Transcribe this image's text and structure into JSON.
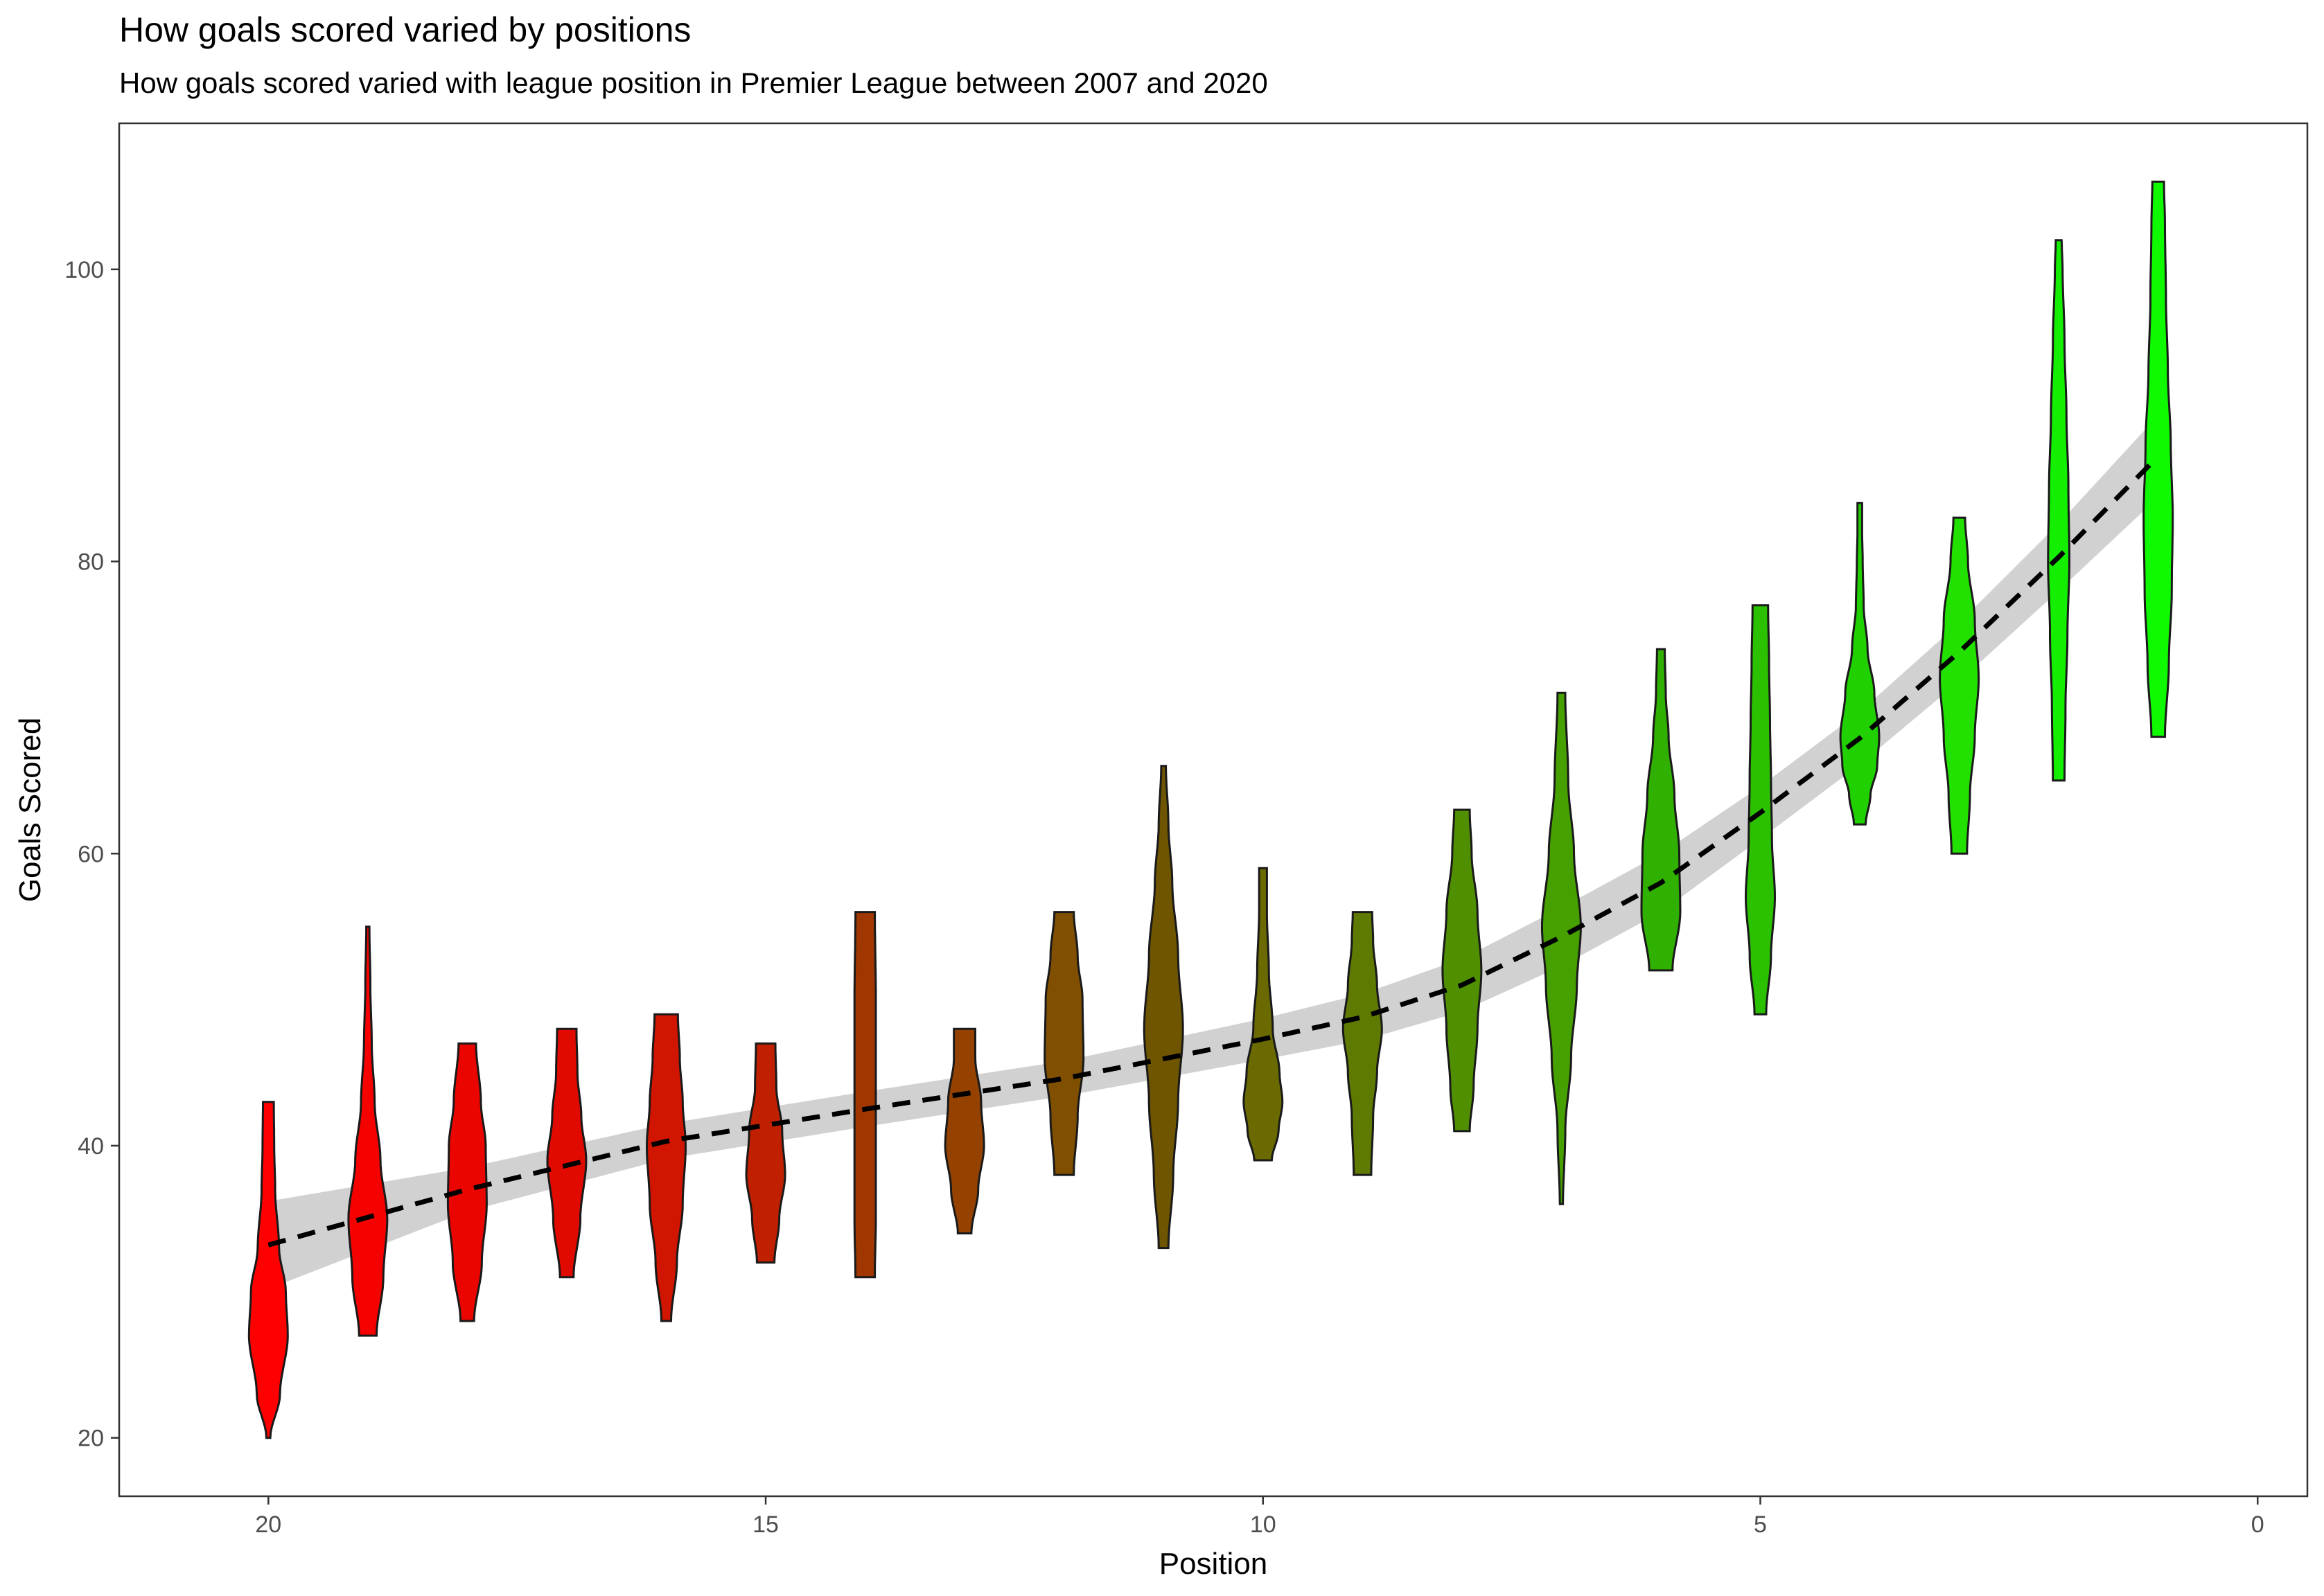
{
  "chart_data": {
    "type": "violin",
    "title": "How goals scored varied by positions",
    "subtitle": "How goals scored varied with league position in Premier League between 2007 and 2020",
    "xlabel": "Position",
    "ylabel": "Goals Scored",
    "x_reversed": true,
    "xlim": [
      21.5,
      -0.5
    ],
    "ylim": [
      16,
      110
    ],
    "x_ticks": [
      20,
      15,
      10,
      5,
      0
    ],
    "y_ticks": [
      20,
      40,
      60,
      80,
      100
    ],
    "grid": false,
    "legend": "none",
    "series": [
      {
        "position": 20,
        "color": "#ff0000",
        "min": 20,
        "max": 43,
        "profile": [
          [
            20,
            0.1
          ],
          [
            23,
            0.6
          ],
          [
            27,
            1.0
          ],
          [
            30,
            0.9
          ],
          [
            33,
            0.55
          ],
          [
            37,
            0.35
          ],
          [
            40,
            0.3
          ],
          [
            43,
            0.28
          ]
        ]
      },
      {
        "position": 19,
        "color": "#f50200",
        "min": 27,
        "max": 55,
        "profile": [
          [
            27,
            0.45
          ],
          [
            31,
            0.8
          ],
          [
            35,
            1.0
          ],
          [
            39,
            0.65
          ],
          [
            43,
            0.35
          ],
          [
            47,
            0.2
          ],
          [
            51,
            0.13
          ],
          [
            55,
            0.08
          ]
        ]
      },
      {
        "position": 18,
        "color": "#eb0500",
        "min": 28,
        "max": 47,
        "profile": [
          [
            28,
            0.35
          ],
          [
            32,
            0.75
          ],
          [
            36,
            1.0
          ],
          [
            40,
            0.95
          ],
          [
            43,
            0.7
          ],
          [
            47,
            0.45
          ]
        ]
      },
      {
        "position": 17,
        "color": "#e00a00",
        "min": 31,
        "max": 48,
        "profile": [
          [
            31,
            0.35
          ],
          [
            35,
            0.7
          ],
          [
            39,
            1.0
          ],
          [
            42,
            0.75
          ],
          [
            45,
            0.55
          ],
          [
            48,
            0.5
          ]
        ]
      },
      {
        "position": 16,
        "color": "#d01500",
        "min": 28,
        "max": 49,
        "profile": [
          [
            28,
            0.25
          ],
          [
            32,
            0.55
          ],
          [
            36,
            0.85
          ],
          [
            40,
            1.0
          ],
          [
            43,
            0.85
          ],
          [
            46,
            0.7
          ],
          [
            49,
            0.6
          ]
        ]
      },
      {
        "position": 15,
        "color": "#c02000",
        "min": 32,
        "max": 47,
        "profile": [
          [
            32,
            0.45
          ],
          [
            35,
            0.7
          ],
          [
            38,
            1.0
          ],
          [
            41,
            0.85
          ],
          [
            44,
            0.55
          ],
          [
            47,
            0.5
          ]
        ]
      },
      {
        "position": 14,
        "color": "#a03600",
        "min": 31,
        "max": 56,
        "profile": [
          [
            31,
            0.5
          ],
          [
            35,
            0.55
          ],
          [
            40,
            0.55
          ],
          [
            45,
            0.55
          ],
          [
            50,
            0.55
          ],
          [
            56,
            0.5
          ]
        ]
      },
      {
        "position": 13,
        "color": "#954200",
        "min": 34,
        "max": 48,
        "profile": [
          [
            34,
            0.35
          ],
          [
            37,
            0.7
          ],
          [
            40,
            1.0
          ],
          [
            43,
            0.85
          ],
          [
            46,
            0.55
          ],
          [
            48,
            0.55
          ]
        ]
      },
      {
        "position": 12,
        "color": "#804f00",
        "min": 38,
        "max": 56,
        "profile": [
          [
            38,
            0.5
          ],
          [
            42,
            0.7
          ],
          [
            46,
            1.0
          ],
          [
            50,
            0.95
          ],
          [
            53,
            0.7
          ],
          [
            56,
            0.5
          ]
        ]
      },
      {
        "position": 11,
        "color": "#6f5500",
        "min": 33,
        "max": 66,
        "profile": [
          [
            33,
            0.25
          ],
          [
            38,
            0.5
          ],
          [
            43,
            0.75
          ],
          [
            48,
            1.0
          ],
          [
            53,
            0.75
          ],
          [
            58,
            0.45
          ],
          [
            62,
            0.25
          ],
          [
            66,
            0.12
          ]
        ]
      },
      {
        "position": 10,
        "color": "#6a6a00",
        "min": 39,
        "max": 59,
        "profile": [
          [
            39,
            0.45
          ],
          [
            41,
            0.8
          ],
          [
            43,
            1.0
          ],
          [
            45,
            0.85
          ],
          [
            48,
            0.5
          ],
          [
            52,
            0.3
          ],
          [
            56,
            0.2
          ],
          [
            59,
            0.2
          ]
        ]
      },
      {
        "position": 9,
        "color": "#5f7a00",
        "min": 38,
        "max": 56,
        "profile": [
          [
            38,
            0.45
          ],
          [
            42,
            0.55
          ],
          [
            45,
            0.75
          ],
          [
            48,
            1.0
          ],
          [
            51,
            0.75
          ],
          [
            54,
            0.55
          ],
          [
            56,
            0.5
          ]
        ]
      },
      {
        "position": 8,
        "color": "#509000",
        "min": 41,
        "max": 63,
        "profile": [
          [
            41,
            0.4
          ],
          [
            44,
            0.6
          ],
          [
            48,
            0.8
          ],
          [
            52,
            1.0
          ],
          [
            56,
            0.8
          ],
          [
            60,
            0.5
          ],
          [
            63,
            0.4
          ]
        ]
      },
      {
        "position": 7,
        "color": "#46a000",
        "min": 36,
        "max": 71,
        "profile": [
          [
            36,
            0.08
          ],
          [
            41,
            0.2
          ],
          [
            46,
            0.5
          ],
          [
            51,
            0.8
          ],
          [
            55,
            1.0
          ],
          [
            60,
            0.65
          ],
          [
            65,
            0.35
          ],
          [
            71,
            0.2
          ]
        ]
      },
      {
        "position": 6,
        "color": "#30b000",
        "min": 52,
        "max": 74,
        "profile": [
          [
            52,
            0.6
          ],
          [
            56,
            1.0
          ],
          [
            60,
            0.95
          ],
          [
            64,
            0.7
          ],
          [
            68,
            0.4
          ],
          [
            71,
            0.25
          ],
          [
            74,
            0.2
          ]
        ]
      },
      {
        "position": 5,
        "color": "#2bc000",
        "min": 49,
        "max": 77,
        "profile": [
          [
            49,
            0.3
          ],
          [
            53,
            0.55
          ],
          [
            57,
            0.75
          ],
          [
            61,
            0.6
          ],
          [
            65,
            0.55
          ],
          [
            69,
            0.5
          ],
          [
            73,
            0.45
          ],
          [
            77,
            0.4
          ]
        ]
      },
      {
        "position": 4,
        "color": "#20d000",
        "min": 62,
        "max": 84,
        "profile": [
          [
            62,
            0.3
          ],
          [
            64,
            0.55
          ],
          [
            66,
            0.9
          ],
          [
            68,
            1.0
          ],
          [
            71,
            0.75
          ],
          [
            74,
            0.4
          ],
          [
            77,
            0.2
          ],
          [
            80,
            0.15
          ],
          [
            82,
            0.12
          ],
          [
            84,
            0.12
          ]
        ]
      },
      {
        "position": 3,
        "color": "#22e000",
        "min": 60,
        "max": 83,
        "profile": [
          [
            60,
            0.4
          ],
          [
            64,
            0.55
          ],
          [
            68,
            0.8
          ],
          [
            72,
            1.0
          ],
          [
            76,
            0.8
          ],
          [
            80,
            0.45
          ],
          [
            83,
            0.3
          ]
        ]
      },
      {
        "position": 2,
        "color": "#14ee00",
        "min": 65,
        "max": 102,
        "profile": [
          [
            65,
            0.3
          ],
          [
            70,
            0.35
          ],
          [
            75,
            0.45
          ],
          [
            80,
            0.55
          ],
          [
            85,
            0.5
          ],
          [
            90,
            0.4
          ],
          [
            95,
            0.3
          ],
          [
            100,
            0.2
          ],
          [
            102,
            0.15
          ]
        ]
      },
      {
        "position": 1,
        "color": "#0ffa00",
        "min": 68,
        "max": 106,
        "profile": [
          [
            68,
            0.35
          ],
          [
            73,
            0.55
          ],
          [
            78,
            0.7
          ],
          [
            83,
            0.75
          ],
          [
            88,
            0.65
          ],
          [
            93,
            0.5
          ],
          [
            98,
            0.4
          ],
          [
            103,
            0.35
          ],
          [
            106,
            0.3
          ]
        ]
      }
    ],
    "trend": {
      "style": "dashed",
      "x": [
        20,
        18,
        16,
        14,
        12,
        10,
        9,
        8,
        7,
        6,
        5,
        4,
        3,
        2,
        1
      ],
      "y": [
        33.2,
        37.0,
        40.3,
        42.5,
        44.6,
        47.3,
        48.8,
        51.0,
        54.3,
        58.0,
        62.8,
        67.9,
        73.8,
        80.3,
        87.2
      ],
      "ci_halfwidth": [
        3.0,
        1.5,
        1.2,
        1.2,
        1.2,
        1.4,
        1.6,
        1.8,
        2.0,
        2.0,
        1.8,
        1.8,
        2.0,
        2.3,
        2.8
      ]
    }
  }
}
